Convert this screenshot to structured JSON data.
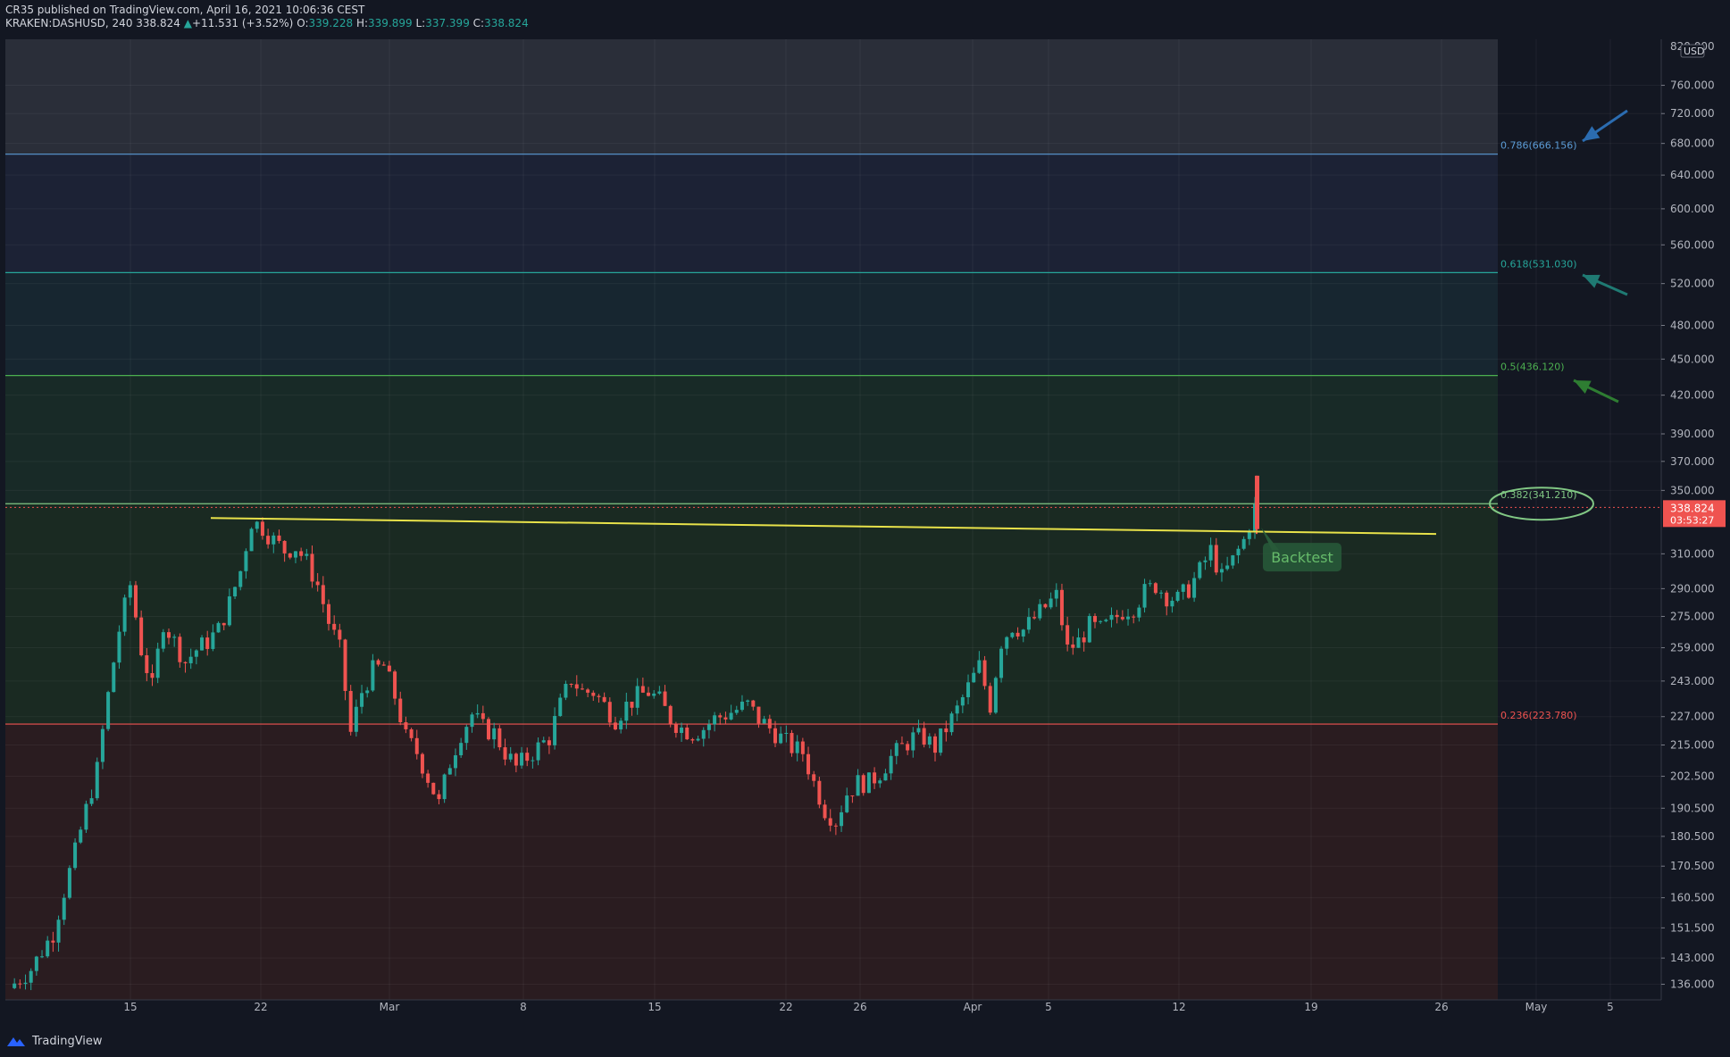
{
  "header": {
    "publisher": "CR35 published on TradingView.com, April 16, 2021 10:06:36 CEST",
    "symbol": "KRAKEN:DASHUSD, 240",
    "last": "338.824",
    "arrow": "▲",
    "change": "+11.531 (+3.52%)",
    "o_label": "O:",
    "o_val": "339.228",
    "h_label": "H:",
    "h_val": "339.899",
    "l_label": "L:",
    "l_val": "337.399",
    "c_label": "C:",
    "c_val": "338.824"
  },
  "footer": {
    "brand": "TradingView",
    "icon": "tradingview-logo-icon"
  },
  "colors": {
    "background": "#131722",
    "up": "#26a69a",
    "down": "#ef5350",
    "trendline": "#e8e24a",
    "fib_786": "#5b9bd5",
    "fib_618": "#26a69a",
    "fib_5": "#4caf50",
    "fib_382": "#81c784",
    "fib_236": "#ef5350"
  },
  "chart_data": {
    "type": "candlestick",
    "log_scale": true,
    "currency": "USD",
    "price_range": [
      132,
      830
    ],
    "y_ticks": [
      "760.000",
      "720.000",
      "680.000",
      "640.000",
      "600.000",
      "560.000",
      "520.000",
      "480.000",
      "450.000",
      "420.000",
      "390.000",
      "370.000",
      "350.000",
      "310.000",
      "290.000",
      "275.000",
      "259.000",
      "243.000",
      "227.000",
      "215.000",
      "202.500",
      "190.500",
      "180.500",
      "170.500",
      "160.500",
      "151.500",
      "143.000",
      "136.000"
    ],
    "y_top_partial": "820.000",
    "x_ticks": [
      "15",
      "22",
      "Mar",
      "8",
      "15",
      "22",
      "26",
      "Apr",
      "5",
      "12",
      "19",
      "26",
      "May",
      "5"
    ],
    "fib_levels": [
      {
        "label": "0.786(666.156)",
        "price": 666.156,
        "color": "#5b9bd5"
      },
      {
        "label": "0.618(531.030)",
        "price": 531.03,
        "color": "#26a69a"
      },
      {
        "label": "0.5(436.120)",
        "price": 436.12,
        "color": "#4caf50"
      },
      {
        "label": "0.382(341.210)",
        "price": 341.21,
        "color": "#81c784"
      },
      {
        "label": "0.236(223.780)",
        "price": 223.78,
        "color": "#ef5350"
      }
    ],
    "last_price": "338.824",
    "countdown": "03:53:27",
    "annotation": "Backtest",
    "trendline": {
      "from_price": 332,
      "to_price": 322
    },
    "candles_close_path": [
      [
        0,
        135
      ],
      [
        4,
        140
      ],
      [
        8,
        150
      ],
      [
        12,
        175
      ],
      [
        16,
        205
      ],
      [
        20,
        268
      ],
      [
        22,
        292
      ],
      [
        24,
        258
      ],
      [
        26,
        240
      ],
      [
        28,
        272
      ],
      [
        30,
        262
      ],
      [
        32,
        252
      ],
      [
        34,
        258
      ],
      [
        36,
        262
      ],
      [
        38,
        268
      ],
      [
        40,
        282
      ],
      [
        42,
        300
      ],
      [
        44,
        330
      ],
      [
        46,
        326
      ],
      [
        48,
        318
      ],
      [
        50,
        312
      ],
      [
        52,
        314
      ],
      [
        54,
        305
      ],
      [
        56,
        292
      ],
      [
        58,
        272
      ],
      [
        60,
        258
      ],
      [
        62,
        220
      ],
      [
        64,
        238
      ],
      [
        66,
        248
      ],
      [
        68,
        250
      ],
      [
        70,
        236
      ],
      [
        72,
        218
      ],
      [
        74,
        212
      ],
      [
        76,
        202
      ],
      [
        78,
        192
      ],
      [
        80,
        208
      ],
      [
        82,
        220
      ],
      [
        84,
        228
      ],
      [
        86,
        222
      ],
      [
        88,
        220
      ],
      [
        90,
        212
      ],
      [
        92,
        206
      ],
      [
        94,
        210
      ],
      [
        96,
        214
      ],
      [
        98,
        218
      ],
      [
        100,
        232
      ],
      [
        102,
        244
      ],
      [
        104,
        238
      ],
      [
        106,
        238
      ],
      [
        108,
        232
      ],
      [
        110,
        226
      ],
      [
        112,
        232
      ],
      [
        114,
        236
      ],
      [
        116,
        238
      ],
      [
        118,
        234
      ],
      [
        120,
        226
      ],
      [
        122,
        222
      ],
      [
        124,
        220
      ],
      [
        126,
        222
      ],
      [
        128,
        226
      ],
      [
        130,
        228
      ],
      [
        132,
        230
      ],
      [
        134,
        232
      ],
      [
        136,
        226
      ],
      [
        138,
        222
      ],
      [
        140,
        218
      ],
      [
        142,
        214
      ],
      [
        144,
        212
      ],
      [
        146,
        200
      ],
      [
        148,
        190
      ],
      [
        150,
        186
      ],
      [
        152,
        196
      ],
      [
        154,
        200
      ],
      [
        156,
        200
      ],
      [
        158,
        204
      ],
      [
        160,
        210
      ],
      [
        162,
        214
      ],
      [
        164,
        218
      ],
      [
        166,
        218
      ],
      [
        168,
        214
      ],
      [
        170,
        222
      ],
      [
        172,
        230
      ],
      [
        174,
        240
      ],
      [
        176,
        250
      ],
      [
        178,
        232
      ],
      [
        180,
        262
      ],
      [
        182,
        270
      ],
      [
        184,
        268
      ],
      [
        186,
        274
      ],
      [
        188,
        280
      ],
      [
        190,
        286
      ],
      [
        192,
        258
      ],
      [
        194,
        262
      ],
      [
        196,
        270
      ],
      [
        198,
        268
      ],
      [
        200,
        272
      ],
      [
        202,
        278
      ],
      [
        204,
        280
      ],
      [
        206,
        288
      ],
      [
        208,
        292
      ],
      [
        210,
        286
      ],
      [
        212,
        284
      ],
      [
        214,
        290
      ],
      [
        216,
        300
      ],
      [
        218,
        312
      ],
      [
        220,
        296
      ],
      [
        222,
        306
      ],
      [
        224,
        318
      ],
      [
        226,
        338
      ]
    ]
  }
}
